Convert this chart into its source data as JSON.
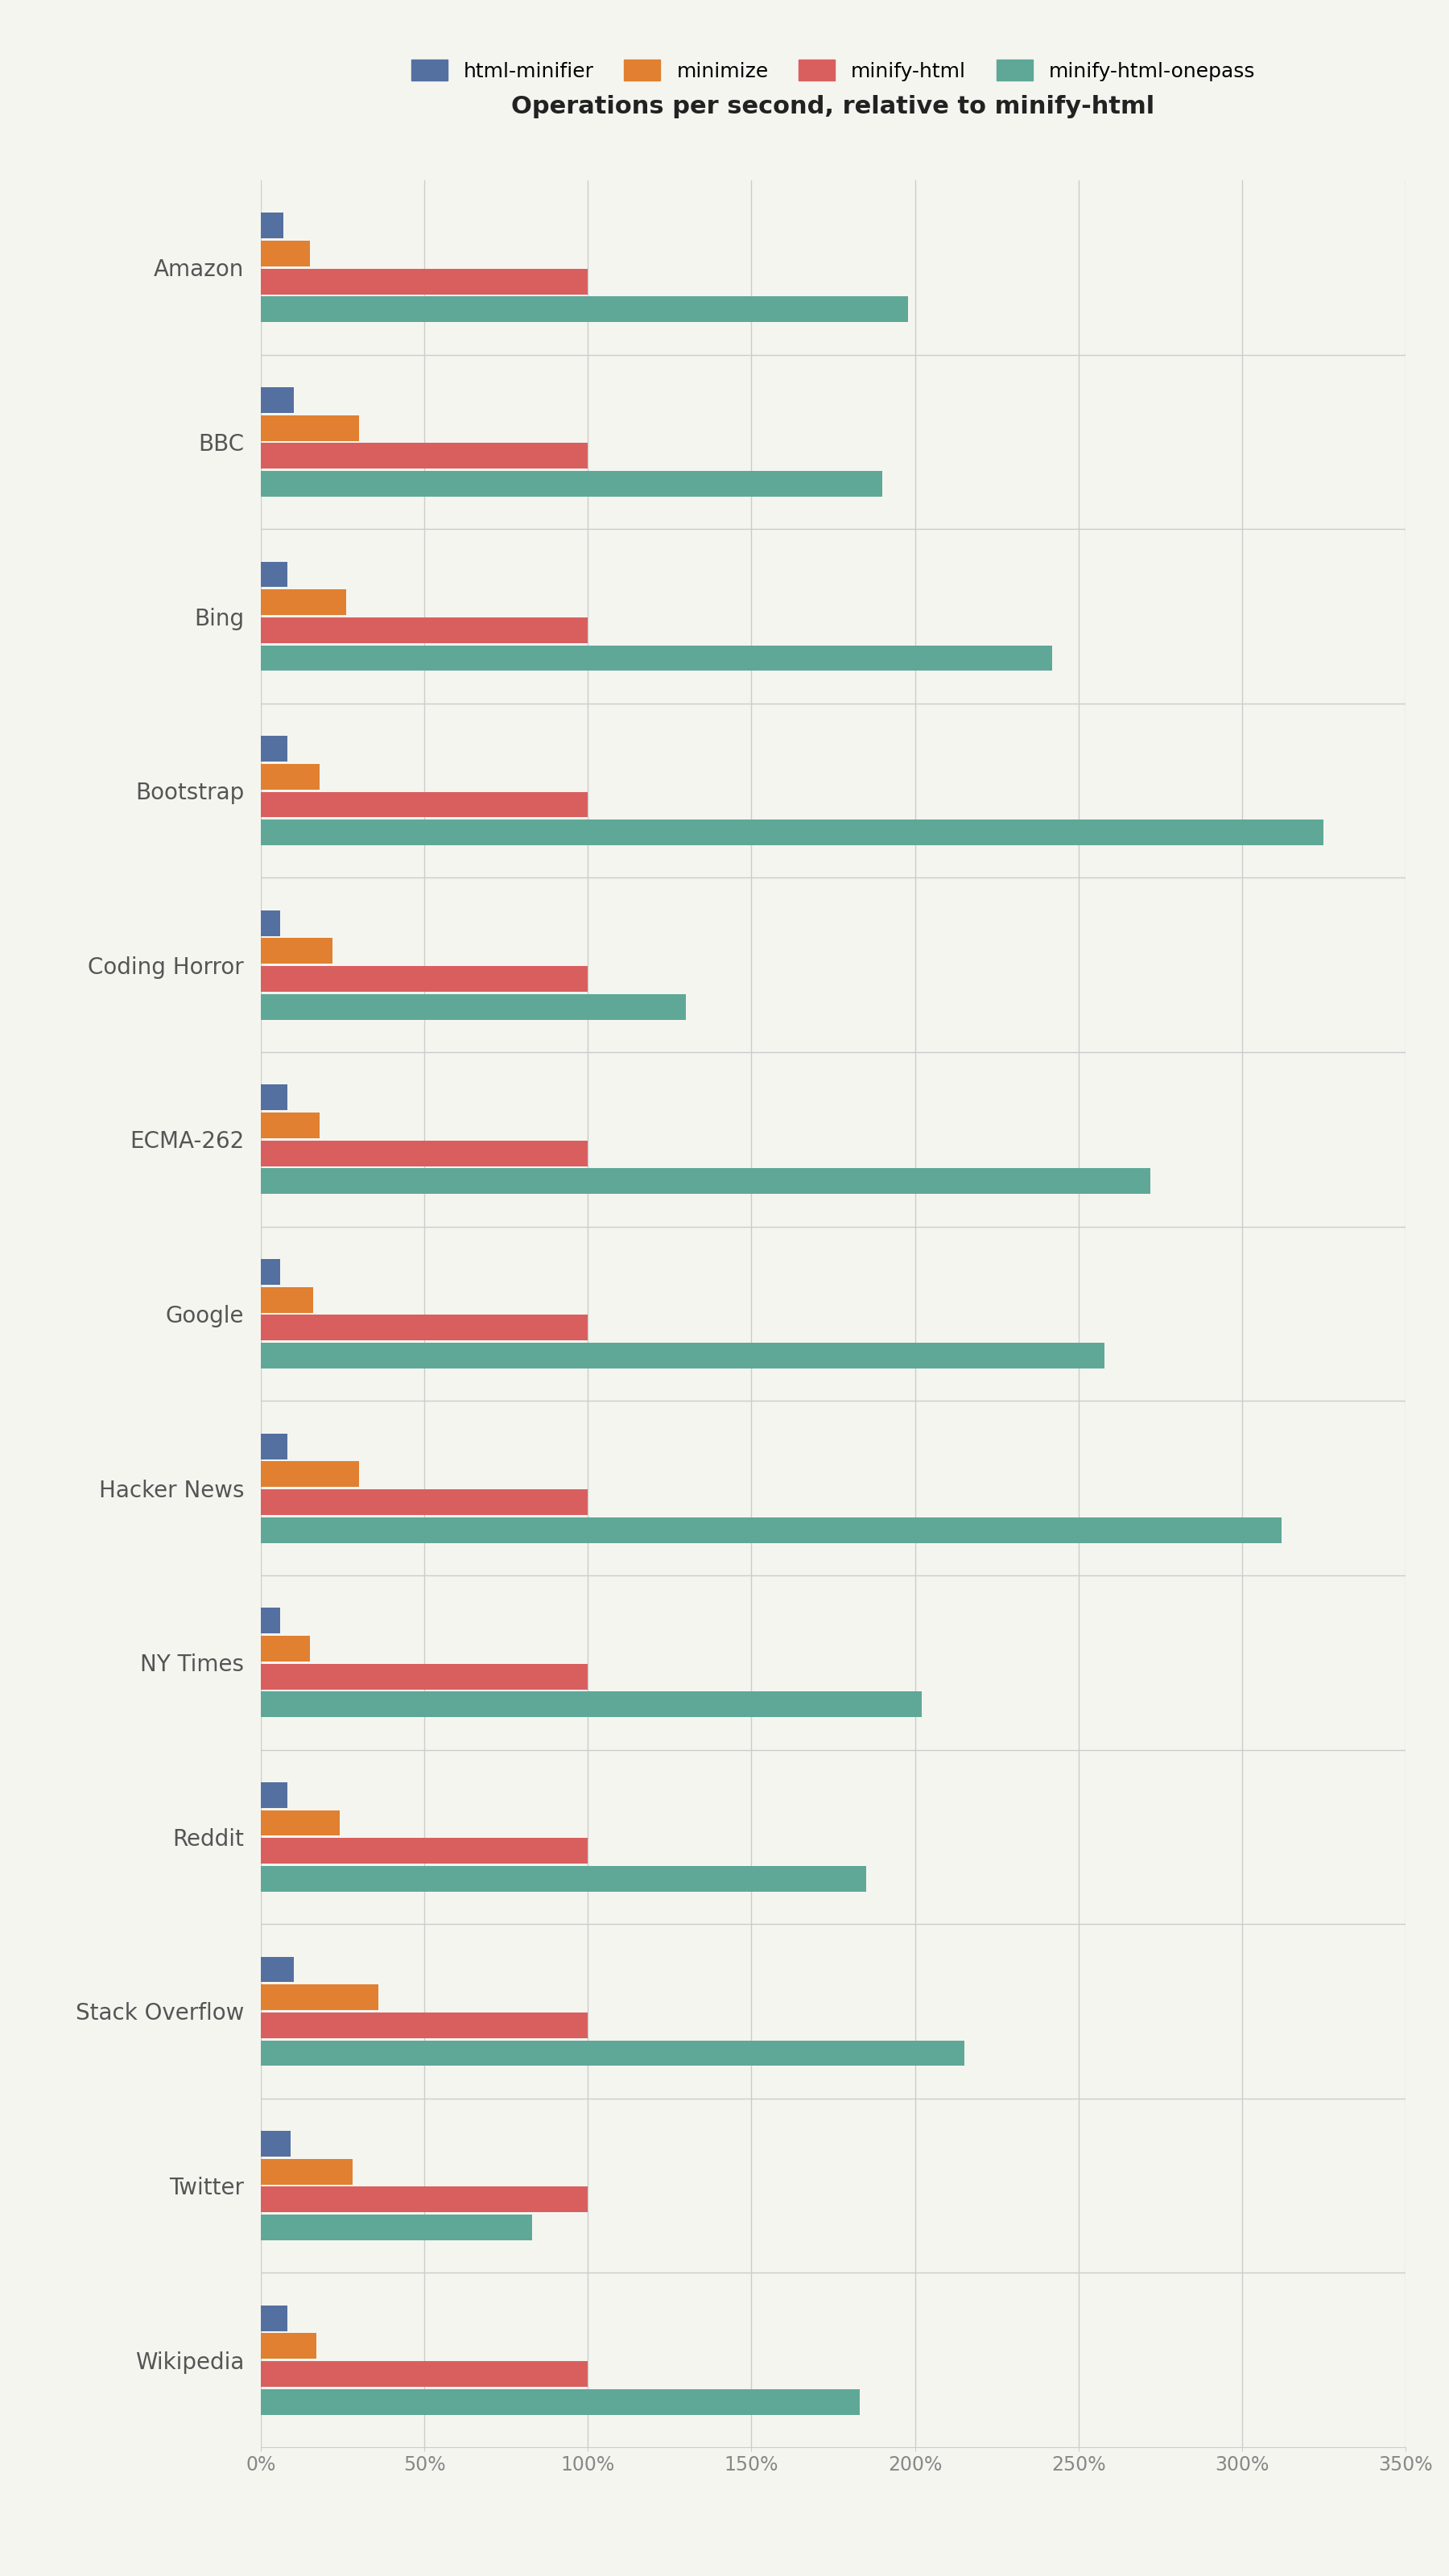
{
  "title": "Operations per second, relative to minify-html",
  "categories": [
    "Amazon",
    "BBC",
    "Bing",
    "Bootstrap",
    "Coding Horror",
    "ECMA-262",
    "Google",
    "Hacker News",
    "NY Times",
    "Reddit",
    "Stack Overflow",
    "Twitter",
    "Wikipedia"
  ],
  "series": {
    "html-minifier": [
      7,
      10,
      8,
      8,
      6,
      8,
      6,
      8,
      6,
      8,
      10,
      9,
      8
    ],
    "minimize": [
      15,
      30,
      26,
      18,
      22,
      18,
      16,
      30,
      15,
      24,
      36,
      28,
      17
    ],
    "minify-html": [
      100,
      100,
      100,
      100,
      100,
      100,
      100,
      100,
      100,
      100,
      100,
      100,
      100
    ],
    "minify-html-onepass": [
      198,
      190,
      242,
      325,
      130,
      272,
      258,
      312,
      202,
      185,
      215,
      83,
      183
    ]
  },
  "colors": {
    "html-minifier": "#5470a0",
    "minimize": "#e08030",
    "minify-html": "#d95f5f",
    "minify-html-onepass": "#5fa898"
  },
  "xlim": [
    0,
    350
  ],
  "xticks": [
    0,
    50,
    100,
    150,
    200,
    250,
    300,
    350
  ],
  "xticklabels": [
    "0%",
    "50%",
    "100%",
    "150%",
    "200%",
    "250%",
    "300%",
    "350%"
  ],
  "bar_height": 0.16,
  "background_color": "#f5f5f0",
  "grid_color": "#cccccc",
  "title_fontsize": 22,
  "label_fontsize": 20,
  "tick_fontsize": 17,
  "legend_fontsize": 18
}
